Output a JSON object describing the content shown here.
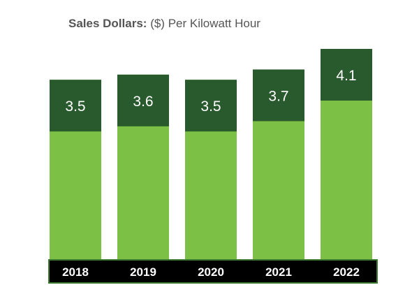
{
  "chart_data": {
    "type": "bar",
    "title": "Sales Dollars:",
    "subtitle": "($) Per Kilowatt Hour",
    "categories": [
      "2018",
      "2019",
      "2020",
      "2021",
      "2022"
    ],
    "values": [
      3.5,
      3.6,
      3.5,
      3.7,
      4.1
    ],
    "labels": [
      "3.5",
      "3.6",
      "3.5",
      "3.7",
      "4.1"
    ],
    "xlabel": "",
    "ylabel": "",
    "grid": false,
    "legend": "none",
    "colors": {
      "bar_top": "#295a2d",
      "bar_bottom": "#7cc145",
      "axis_band": "#000000",
      "axis_band_border": "#3c7a32",
      "label_text": "#ffffff",
      "title_text": "#555555"
    }
  }
}
